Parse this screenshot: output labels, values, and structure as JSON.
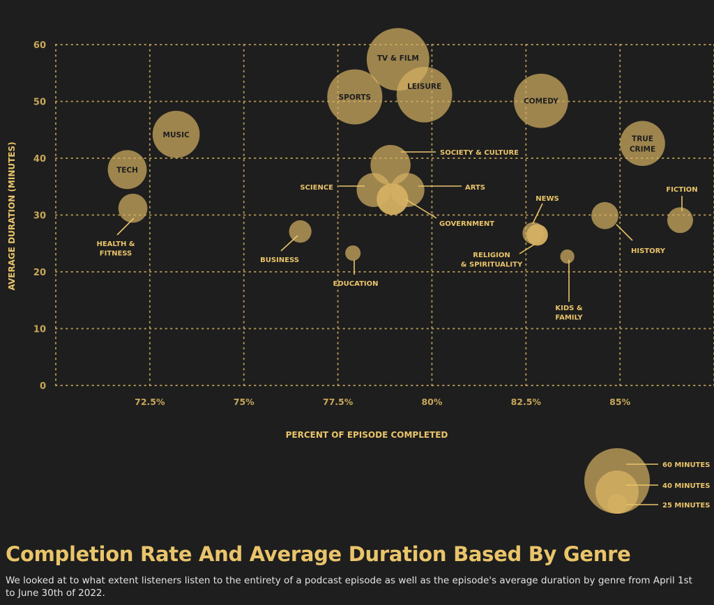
{
  "colors": {
    "background": "#1e1e1e",
    "accent": "#e9c46a",
    "bubble": "#d4b062",
    "grid": "#c9a85a",
    "inside_label": "#1e1e1e"
  },
  "chart_data": {
    "type": "scatter",
    "encoding": "bubble",
    "xlabel": "PERCENT OF EPISODE COMPLETED",
    "ylabel": "AVERAGE DURATION (MINUTES)",
    "xlim": [
      70,
      87.5
    ],
    "ylim": [
      0,
      60
    ],
    "x_ticks": [
      72.5,
      75,
      77.5,
      80,
      82.5,
      85
    ],
    "x_tick_labels": [
      "72.5%",
      "75%",
      "77.5%",
      "80%",
      "82.5%",
      "85%"
    ],
    "y_ticks": [
      0,
      10,
      20,
      30,
      40,
      50,
      60
    ],
    "y_tick_labels": [
      "0",
      "10",
      "20",
      "30",
      "40",
      "50",
      "60"
    ],
    "grid": true,
    "size_legend": {
      "position": "bottom-right",
      "items": [
        "60 MINUTES",
        "40 MINUTES",
        "25 MINUTES"
      ],
      "values": [
        60,
        40,
        25
      ]
    },
    "points": [
      {
        "label": [
          "MUSIC"
        ],
        "x": 73.2,
        "y": 44.2
      },
      {
        "label": [
          "TECH"
        ],
        "x": 71.9,
        "y": 38.0
      },
      {
        "label": [
          "HEALTH &",
          "FITNESS"
        ],
        "x": 72.05,
        "y": 31.2
      },
      {
        "label": [
          "BUSINESS"
        ],
        "x": 76.5,
        "y": 27.1
      },
      {
        "label": [
          "EDUCATION"
        ],
        "x": 77.9,
        "y": 23.3
      },
      {
        "label": [
          "SPORTS"
        ],
        "x": 77.95,
        "y": 50.8
      },
      {
        "label": [
          "TV & FILM"
        ],
        "x": 79.1,
        "y": 57.4
      },
      {
        "label": [
          "LEISURE"
        ],
        "x": 79.8,
        "y": 51.2
      },
      {
        "label": [
          "SOCIETY & CULTURE"
        ],
        "x": 78.9,
        "y": 38.8
      },
      {
        "label": [
          "SCIENCE"
        ],
        "x": 78.45,
        "y": 34.4
      },
      {
        "label": [
          "ARTS"
        ],
        "x": 79.35,
        "y": 34.4
      },
      {
        "label": [
          "GOVERNMENT"
        ],
        "x": 78.95,
        "y": 32.8
      },
      {
        "label": [
          "COMEDY"
        ],
        "x": 82.9,
        "y": 50.1
      },
      {
        "label": [
          "TRUE",
          "CRIME"
        ],
        "x": 85.6,
        "y": 42.6
      },
      {
        "label": [
          "HISTORY"
        ],
        "x": 84.6,
        "y": 29.9
      },
      {
        "label": [
          "FICTION"
        ],
        "x": 86.6,
        "y": 29.1
      },
      {
        "label": [
          "NEWS"
        ],
        "x": 82.7,
        "y": 26.8
      },
      {
        "label": [
          "RELIGION",
          "& SPIRITUALITY"
        ],
        "x": 82.8,
        "y": 26.5
      },
      {
        "label": [
          "KIDS &",
          "FAMILY"
        ],
        "x": 83.6,
        "y": 22.7
      }
    ]
  },
  "caption": {
    "title": "Completion Rate And Average Duration Based By Genre",
    "subtitle": "We looked at to what extent listeners listen to the entirety of a podcast episode as well as the episode's average duration by genre from April 1st to June 30th of 2022."
  }
}
